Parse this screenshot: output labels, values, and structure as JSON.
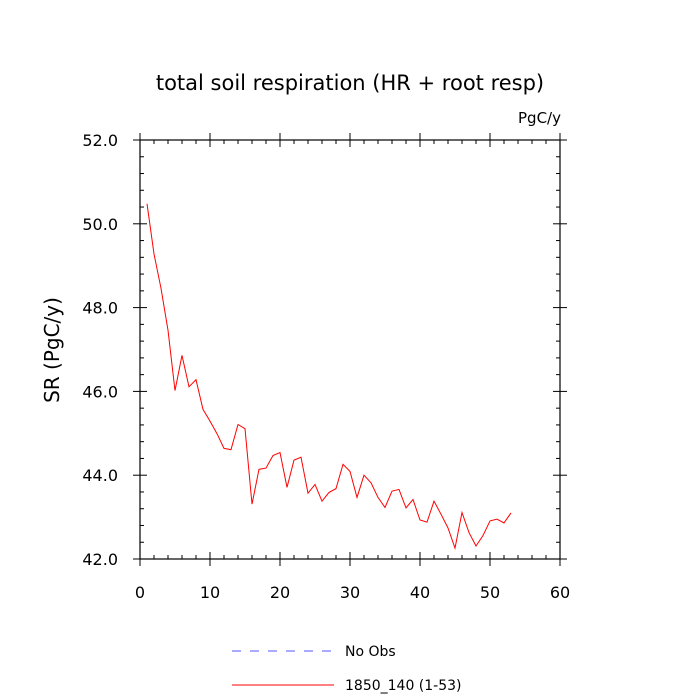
{
  "chart_data": {
    "type": "line",
    "title": "total soil respiration (HR + root resp)",
    "units": "PgC/y",
    "xlabel": "",
    "ylabel": "SR  (PgC/y)",
    "xlim": [
      0,
      60
    ],
    "ylim": [
      42.0,
      52.0
    ],
    "x_ticks": [
      0,
      10,
      20,
      30,
      40,
      50,
      60
    ],
    "y_ticks": [
      42.0,
      44.0,
      46.0,
      48.0,
      50.0,
      52.0
    ],
    "grid": false,
    "legend_position": "bottom-center",
    "series": [
      {
        "name": "No Obs",
        "style": "dashed",
        "color": "#5555ff",
        "x": [],
        "values": []
      },
      {
        "name": "1850_140 (1-53)",
        "style": "solid",
        "color": "#ff0000",
        "x": [
          1,
          2,
          3,
          4,
          5,
          6,
          7,
          8,
          9,
          10,
          11,
          12,
          13,
          14,
          15,
          16,
          17,
          18,
          19,
          20,
          21,
          22,
          23,
          24,
          25,
          26,
          27,
          28,
          29,
          30,
          31,
          32,
          33,
          34,
          35,
          36,
          37,
          38,
          39,
          40,
          41,
          42,
          43,
          44,
          45,
          46,
          47,
          48,
          49,
          50,
          51,
          52,
          53
        ],
        "values": [
          50.48,
          49.28,
          48.46,
          47.46,
          46.02,
          46.86,
          46.11,
          46.28,
          45.57,
          45.29,
          44.99,
          44.64,
          44.61,
          45.21,
          45.11,
          43.31,
          44.14,
          44.17,
          44.47,
          44.54,
          43.71,
          44.36,
          44.43,
          43.57,
          43.78,
          43.38,
          43.59,
          43.68,
          44.26,
          44.09,
          43.47,
          44.0,
          43.82,
          43.47,
          43.23,
          43.62,
          43.66,
          43.22,
          43.42,
          42.93,
          42.88,
          43.38,
          43.07,
          42.74,
          42.26,
          43.11,
          42.63,
          42.31,
          42.56,
          42.91,
          42.95,
          42.86,
          43.1
        ]
      }
    ]
  }
}
